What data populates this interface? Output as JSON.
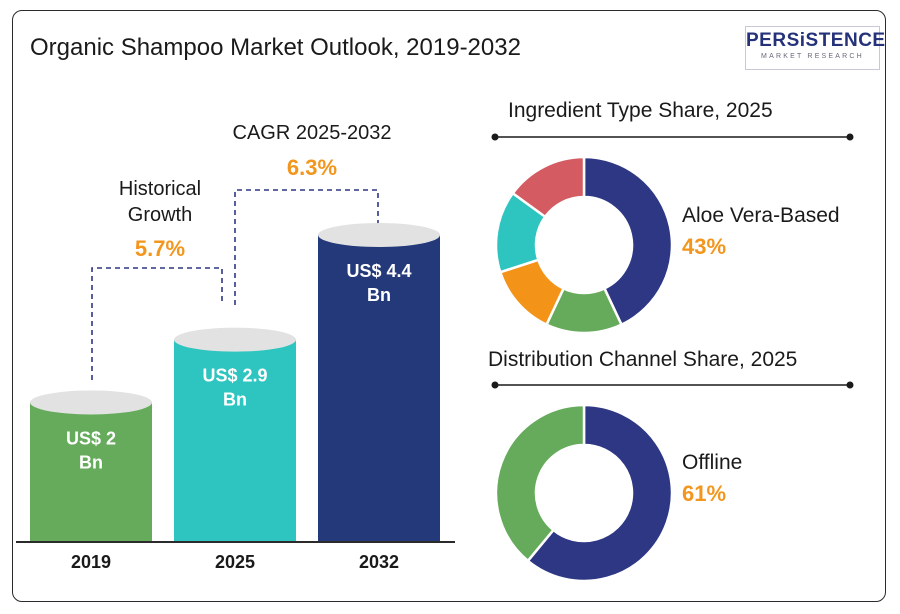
{
  "title": "Organic Shampoo Market Outlook, 2019-2032",
  "logo": {
    "main": "PERSiSTENCE",
    "sub": "MARKET RESEARCH"
  },
  "annotations": {
    "historical_label_line1": "Historical",
    "historical_label_line2": "Growth",
    "historical_value": "5.7%",
    "cagr_label": "CAGR 2025-2032",
    "cagr_value": "6.3%"
  },
  "chart_data": [
    {
      "type": "bar",
      "categories": [
        "2019",
        "2025",
        "2032"
      ],
      "values": [
        2,
        2.9,
        4.4
      ],
      "value_labels": [
        [
          "US$ 2",
          "Bn"
        ],
        [
          "US$ 2.9",
          "Bn"
        ],
        [
          "US$ 4.4",
          "Bn"
        ]
      ],
      "colors": [
        "#66ab5c",
        "#2ec4c0",
        "#24397a"
      ],
      "top_color": "#e2e2e2",
      "ylim": [
        0,
        4.4
      ]
    },
    {
      "type": "pie",
      "title": "Ingredient Type Share, 2025",
      "highlight_label": "Aloe Vera-Based",
      "highlight_value": "43%",
      "values": [
        43,
        14,
        13,
        15,
        15
      ],
      "colors": [
        "#2e3784",
        "#66ab5c",
        "#f39419",
        "#2ec4c0",
        "#d45b61"
      ]
    },
    {
      "type": "pie",
      "title": "Distribution Channel Share, 2025",
      "highlight_label": "Offline",
      "highlight_value": "61%",
      "values": [
        61,
        39
      ],
      "colors": [
        "#2e3784",
        "#66ab5c"
      ]
    }
  ]
}
